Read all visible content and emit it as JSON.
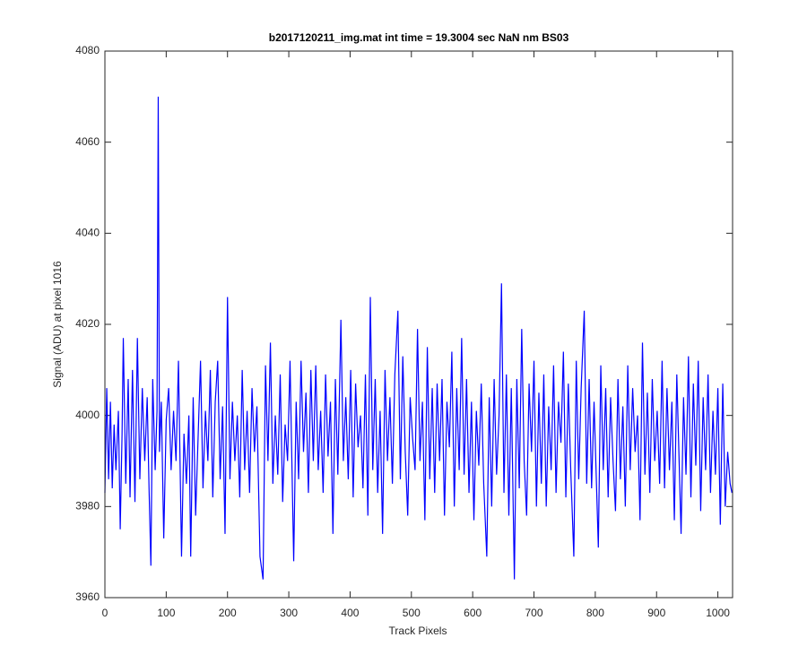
{
  "chart_data": {
    "type": "line",
    "title": "b2017120211_img.mat int time = 19.3004 sec  NaN nm BS03",
    "x_label": "Track Pixels",
    "y_label": "Signal (ADU) at pixel 1016",
    "color": "#0000ff",
    "grid": false,
    "xlim": [
      0,
      1024
    ],
    "ylim": [
      3960,
      4080
    ],
    "xticks": [
      0,
      100,
      200,
      300,
      400,
      500,
      600,
      700,
      800,
      900,
      1000
    ],
    "yticks": [
      3960,
      3980,
      4000,
      4020,
      4040,
      4060,
      4080
    ],
    "x": [
      0,
      3,
      6,
      9,
      12,
      15,
      18,
      22,
      25,
      28,
      30,
      34,
      38,
      41,
      45,
      49,
      53,
      57,
      61,
      65,
      69,
      72,
      75,
      78,
      82,
      85,
      87,
      89,
      92,
      96,
      100,
      104,
      108,
      112,
      116,
      120,
      125,
      129,
      133,
      137,
      140,
      144,
      148,
      152,
      156,
      160,
      164,
      168,
      172,
      176,
      180,
      184,
      188,
      192,
      196,
      200,
      204,
      208,
      212,
      216,
      220,
      224,
      228,
      232,
      236,
      240,
      244,
      248,
      253,
      258,
      262,
      266,
      270,
      274,
      278,
      282,
      286,
      290,
      294,
      298,
      302,
      308,
      312,
      316,
      320,
      324,
      328,
      332,
      336,
      340,
      344,
      348,
      352,
      356,
      360,
      364,
      368,
      372,
      376,
      380,
      385,
      389,
      393,
      397,
      401,
      405,
      409,
      413,
      417,
      421,
      425,
      429,
      433,
      437,
      441,
      445,
      449,
      453,
      457,
      461,
      465,
      469,
      473,
      478,
      482,
      486,
      490,
      494,
      498,
      502,
      506,
      510,
      514,
      518,
      522,
      526,
      530,
      534,
      538,
      542,
      546,
      550,
      554,
      558,
      562,
      566,
      570,
      574,
      578,
      582,
      586,
      590,
      594,
      598,
      602,
      606,
      610,
      614,
      618,
      623,
      627,
      631,
      635,
      639,
      643,
      647,
      651,
      655,
      659,
      663,
      668,
      672,
      676,
      680,
      684,
      688,
      692,
      696,
      700,
      704,
      708,
      712,
      716,
      720,
      724,
      728,
      732,
      736,
      740,
      744,
      748,
      752,
      756,
      760,
      765,
      769,
      773,
      777,
      782,
      786,
      790,
      794,
      798,
      805,
      809,
      813,
      817,
      821,
      825,
      829,
      833,
      837,
      841,
      845,
      849,
      853,
      857,
      861,
      865,
      869,
      873,
      877,
      881,
      885,
      889,
      893,
      897,
      901,
      905,
      909,
      913,
      917,
      921,
      925,
      929,
      933,
      940,
      944,
      948,
      952,
      956,
      960,
      964,
      968,
      972,
      976,
      980,
      984,
      988,
      992,
      996,
      1000,
      1004,
      1008,
      1012,
      1016,
      1020,
      1023
    ],
    "values": [
      3983,
      4006,
      3986,
      4003,
      3984,
      3998,
      3988,
      4001,
      3975,
      3996,
      4017,
      3985,
      4008,
      3982,
      4010,
      3981,
      4017,
      3986,
      4006,
      3990,
      4004,
      3984,
      3967,
      4008,
      3988,
      4001,
      4070,
      3992,
      4003,
      3973,
      3999,
      4006,
      3988,
      4001,
      3990,
      4012,
      3969,
      3996,
      3985,
      4000,
      3969,
      4004,
      3978,
      3995,
      4012,
      3984,
      4001,
      3990,
      4010,
      3982,
      4003,
      4012,
      3986,
      4002,
      3974,
      4026,
      3986,
      4003,
      3990,
      4000,
      3982,
      4010,
      3988,
      4001,
      3983,
      4006,
      3992,
      4002,
      3969,
      3964,
      4011,
      3990,
      4016,
      3985,
      4000,
      3987,
      4009,
      3981,
      3998,
      3990,
      4012,
      3968,
      4003,
      3986,
      4012,
      3992,
      4005,
      3983,
      4010,
      3990,
      4011,
      3988,
      4001,
      3983,
      4009,
      3991,
      4003,
      3974,
      4008,
      3987,
      4021,
      3990,
      4004,
      3986,
      4010,
      3982,
      4007,
      3993,
      4000,
      3984,
      4009,
      3978,
      4026,
      3988,
      4008,
      3983,
      4001,
      3974,
      4010,
      3990,
      4004,
      3985,
      4009,
      4023,
      3986,
      4013,
      3992,
      3978,
      4004,
      3995,
      3988,
      4019,
      3990,
      4003,
      3977,
      4015,
      3986,
      4006,
      3983,
      4007,
      3990,
      4008,
      3978,
      4003,
      3993,
      4014,
      3980,
      4006,
      3988,
      4017,
      3987,
      4008,
      3983,
      4003,
      3977,
      4001,
      3989,
      4007,
      3985,
      3969,
      4004,
      3980,
      4008,
      3987,
      4000,
      4029,
      3983,
      4009,
      3978,
      4006,
      3964,
      4008,
      3984,
      4019,
      3990,
      3978,
      4007,
      3992,
      4012,
      3980,
      4005,
      3985,
      4009,
      3980,
      4002,
      3988,
      4011,
      3983,
      4003,
      3994,
      4014,
      3982,
      4007,
      3988,
      3969,
      4012,
      3986,
      4006,
      4023,
      3985,
      4008,
      3984,
      4003,
      3971,
      4011,
      3988,
      4006,
      3982,
      4004,
      3990,
      3979,
      4008,
      3986,
      4002,
      3980,
      4011,
      3988,
      4006,
      3992,
      4000,
      3977,
      4016,
      3987,
      4005,
      3983,
      4008,
      3990,
      4001,
      3985,
      4012,
      3984,
      4006,
      3988,
      4003,
      3977,
      4009,
      3974,
      4004,
      3987,
      4013,
      3982,
      4007,
      3989,
      4012,
      3979,
      4004,
      3988,
      4009,
      3983,
      4001,
      3987,
      4006,
      3976,
      4007,
      3980,
      3992,
      3985,
      3983
    ]
  }
}
